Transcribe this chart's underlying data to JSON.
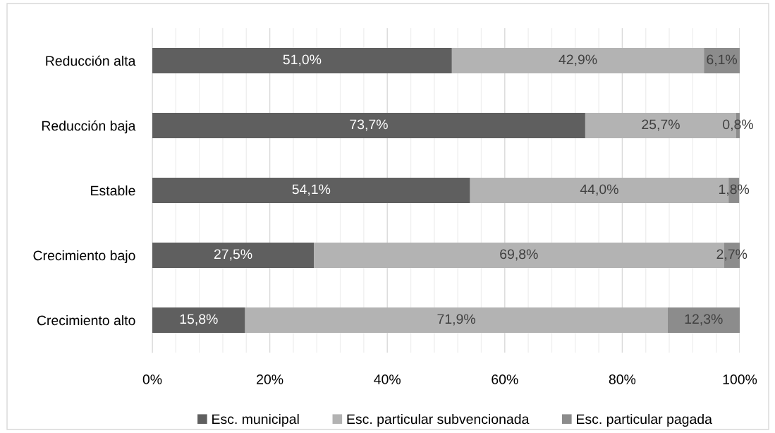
{
  "chart_data": {
    "type": "bar",
    "orientation": "horizontal",
    "stacked": true,
    "categories": [
      "Reducción alta",
      "Reducción baja",
      "Estable",
      "Crecimiento bajo",
      "Crecimiento alto"
    ],
    "series": [
      {
        "name": "Esc. municipal",
        "color": "#5f5f5f",
        "values": [
          51.0,
          73.7,
          54.1,
          27.5,
          15.8
        ],
        "value_labels": [
          "51,0%",
          "73,7%",
          "54,1%",
          "27,5%",
          "15,8%"
        ]
      },
      {
        "name": "Esc. particular subvencionada",
        "color": "#b3b3b3",
        "values": [
          42.9,
          25.7,
          44.0,
          69.8,
          71.9
        ],
        "value_labels": [
          "42,9%",
          "25,7%",
          "44,0%",
          "69,8%",
          "71,9%"
        ]
      },
      {
        "name": "Esc. particular pagada",
        "color": "#8c8c8c",
        "values": [
          6.1,
          0.8,
          1.8,
          2.7,
          12.3
        ],
        "value_labels": [
          "6,1%",
          "0,8%",
          "1,8%",
          "2,7%",
          "12,3%"
        ]
      }
    ],
    "xlim": [
      0,
      100
    ],
    "xticks": [
      {
        "value": 0,
        "label": "0%"
      },
      {
        "value": 4,
        "label": null
      },
      {
        "value": 8,
        "label": null
      },
      {
        "value": 12,
        "label": null
      },
      {
        "value": 16,
        "label": null
      },
      {
        "value": 20,
        "label": "20%"
      },
      {
        "value": 24,
        "label": null
      },
      {
        "value": 28,
        "label": null
      },
      {
        "value": 32,
        "label": null
      },
      {
        "value": 36,
        "label": null
      },
      {
        "value": 40,
        "label": "40%"
      },
      {
        "value": 44,
        "label": null
      },
      {
        "value": 48,
        "label": null
      },
      {
        "value": 52,
        "label": null
      },
      {
        "value": 56,
        "label": null
      },
      {
        "value": 60,
        "label": "60%"
      },
      {
        "value": 64,
        "label": null
      },
      {
        "value": 68,
        "label": null
      },
      {
        "value": 72,
        "label": null
      },
      {
        "value": 76,
        "label": null
      },
      {
        "value": 80,
        "label": "80%"
      },
      {
        "value": 84,
        "label": null
      },
      {
        "value": 88,
        "label": null
      },
      {
        "value": 92,
        "label": null
      },
      {
        "value": 96,
        "label": null
      },
      {
        "value": 100,
        "label": "100%"
      }
    ],
    "grid": "x",
    "legend": "bottom"
  }
}
